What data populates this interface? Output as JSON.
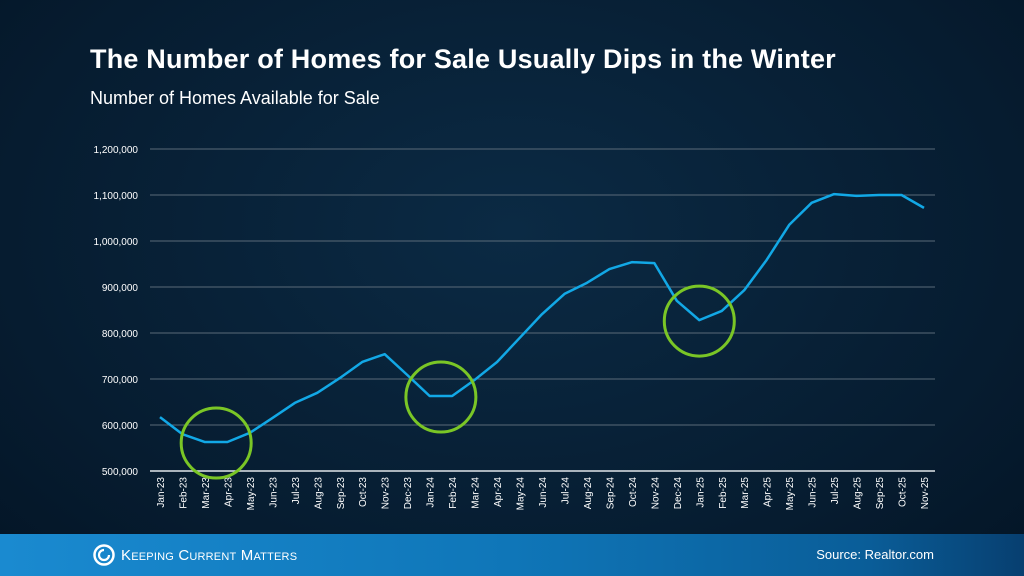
{
  "header": {
    "title": "The Number of Homes for Sale Usually Dips in the Winter",
    "subtitle": "Number of Homes Available for Sale"
  },
  "footer": {
    "brand": "Keeping Current Matters",
    "source": "Source: Realtor.com"
  },
  "colors": {
    "line": "#12a8e6",
    "highlight": "#7ac626",
    "grid": "#5a6a78"
  },
  "chart_data": {
    "type": "line",
    "title": "Number of Homes Available for Sale",
    "ylim": [
      500000,
      1200000
    ],
    "yticks": [
      500000,
      600000,
      700000,
      800000,
      900000,
      1000000,
      1100000,
      1200000
    ],
    "ytick_labels": [
      "500,000",
      "600,000",
      "700,000",
      "800,000",
      "900,000",
      "1,000,000",
      "1,100,000",
      "1,200,000"
    ],
    "grid": true,
    "categories": [
      "Jan-23",
      "Feb-23",
      "Mar-23",
      "Apr-23",
      "May-23",
      "Jun-23",
      "Jul-23",
      "Aug-23",
      "Sep-23",
      "Oct-23",
      "Nov-23",
      "Dec-23",
      "Jan-24",
      "Feb-24",
      "Mar-24",
      "Apr-24",
      "May-24",
      "Jun-24",
      "Jul-24",
      "Aug-24",
      "Sep-24",
      "Oct-24",
      "Nov-24",
      "Dec-24",
      "Jan-25",
      "Feb-25",
      "Mar-25",
      "Apr-25",
      "May-25",
      "Jun-25",
      "Jul-25",
      "Aug-25",
      "Sep-25",
      "Oct-25",
      "Nov-25"
    ],
    "values": [
      617000,
      580000,
      563000,
      563000,
      583000,
      615000,
      648000,
      670000,
      702000,
      737000,
      754000,
      709000,
      663000,
      663000,
      698000,
      737000,
      789000,
      841000,
      885000,
      909000,
      939000,
      954000,
      952000,
      870000,
      828000,
      848000,
      893000,
      959000,
      1035000,
      1083000,
      1102000,
      1098000,
      1100000,
      1100000,
      1072000
    ],
    "highlighted_dips": [
      {
        "between": [
          "Mar-23",
          "Apr-23"
        ]
      },
      {
        "between": [
          "Jan-24",
          "Feb-24"
        ]
      },
      {
        "at": "Jan-25"
      }
    ]
  }
}
